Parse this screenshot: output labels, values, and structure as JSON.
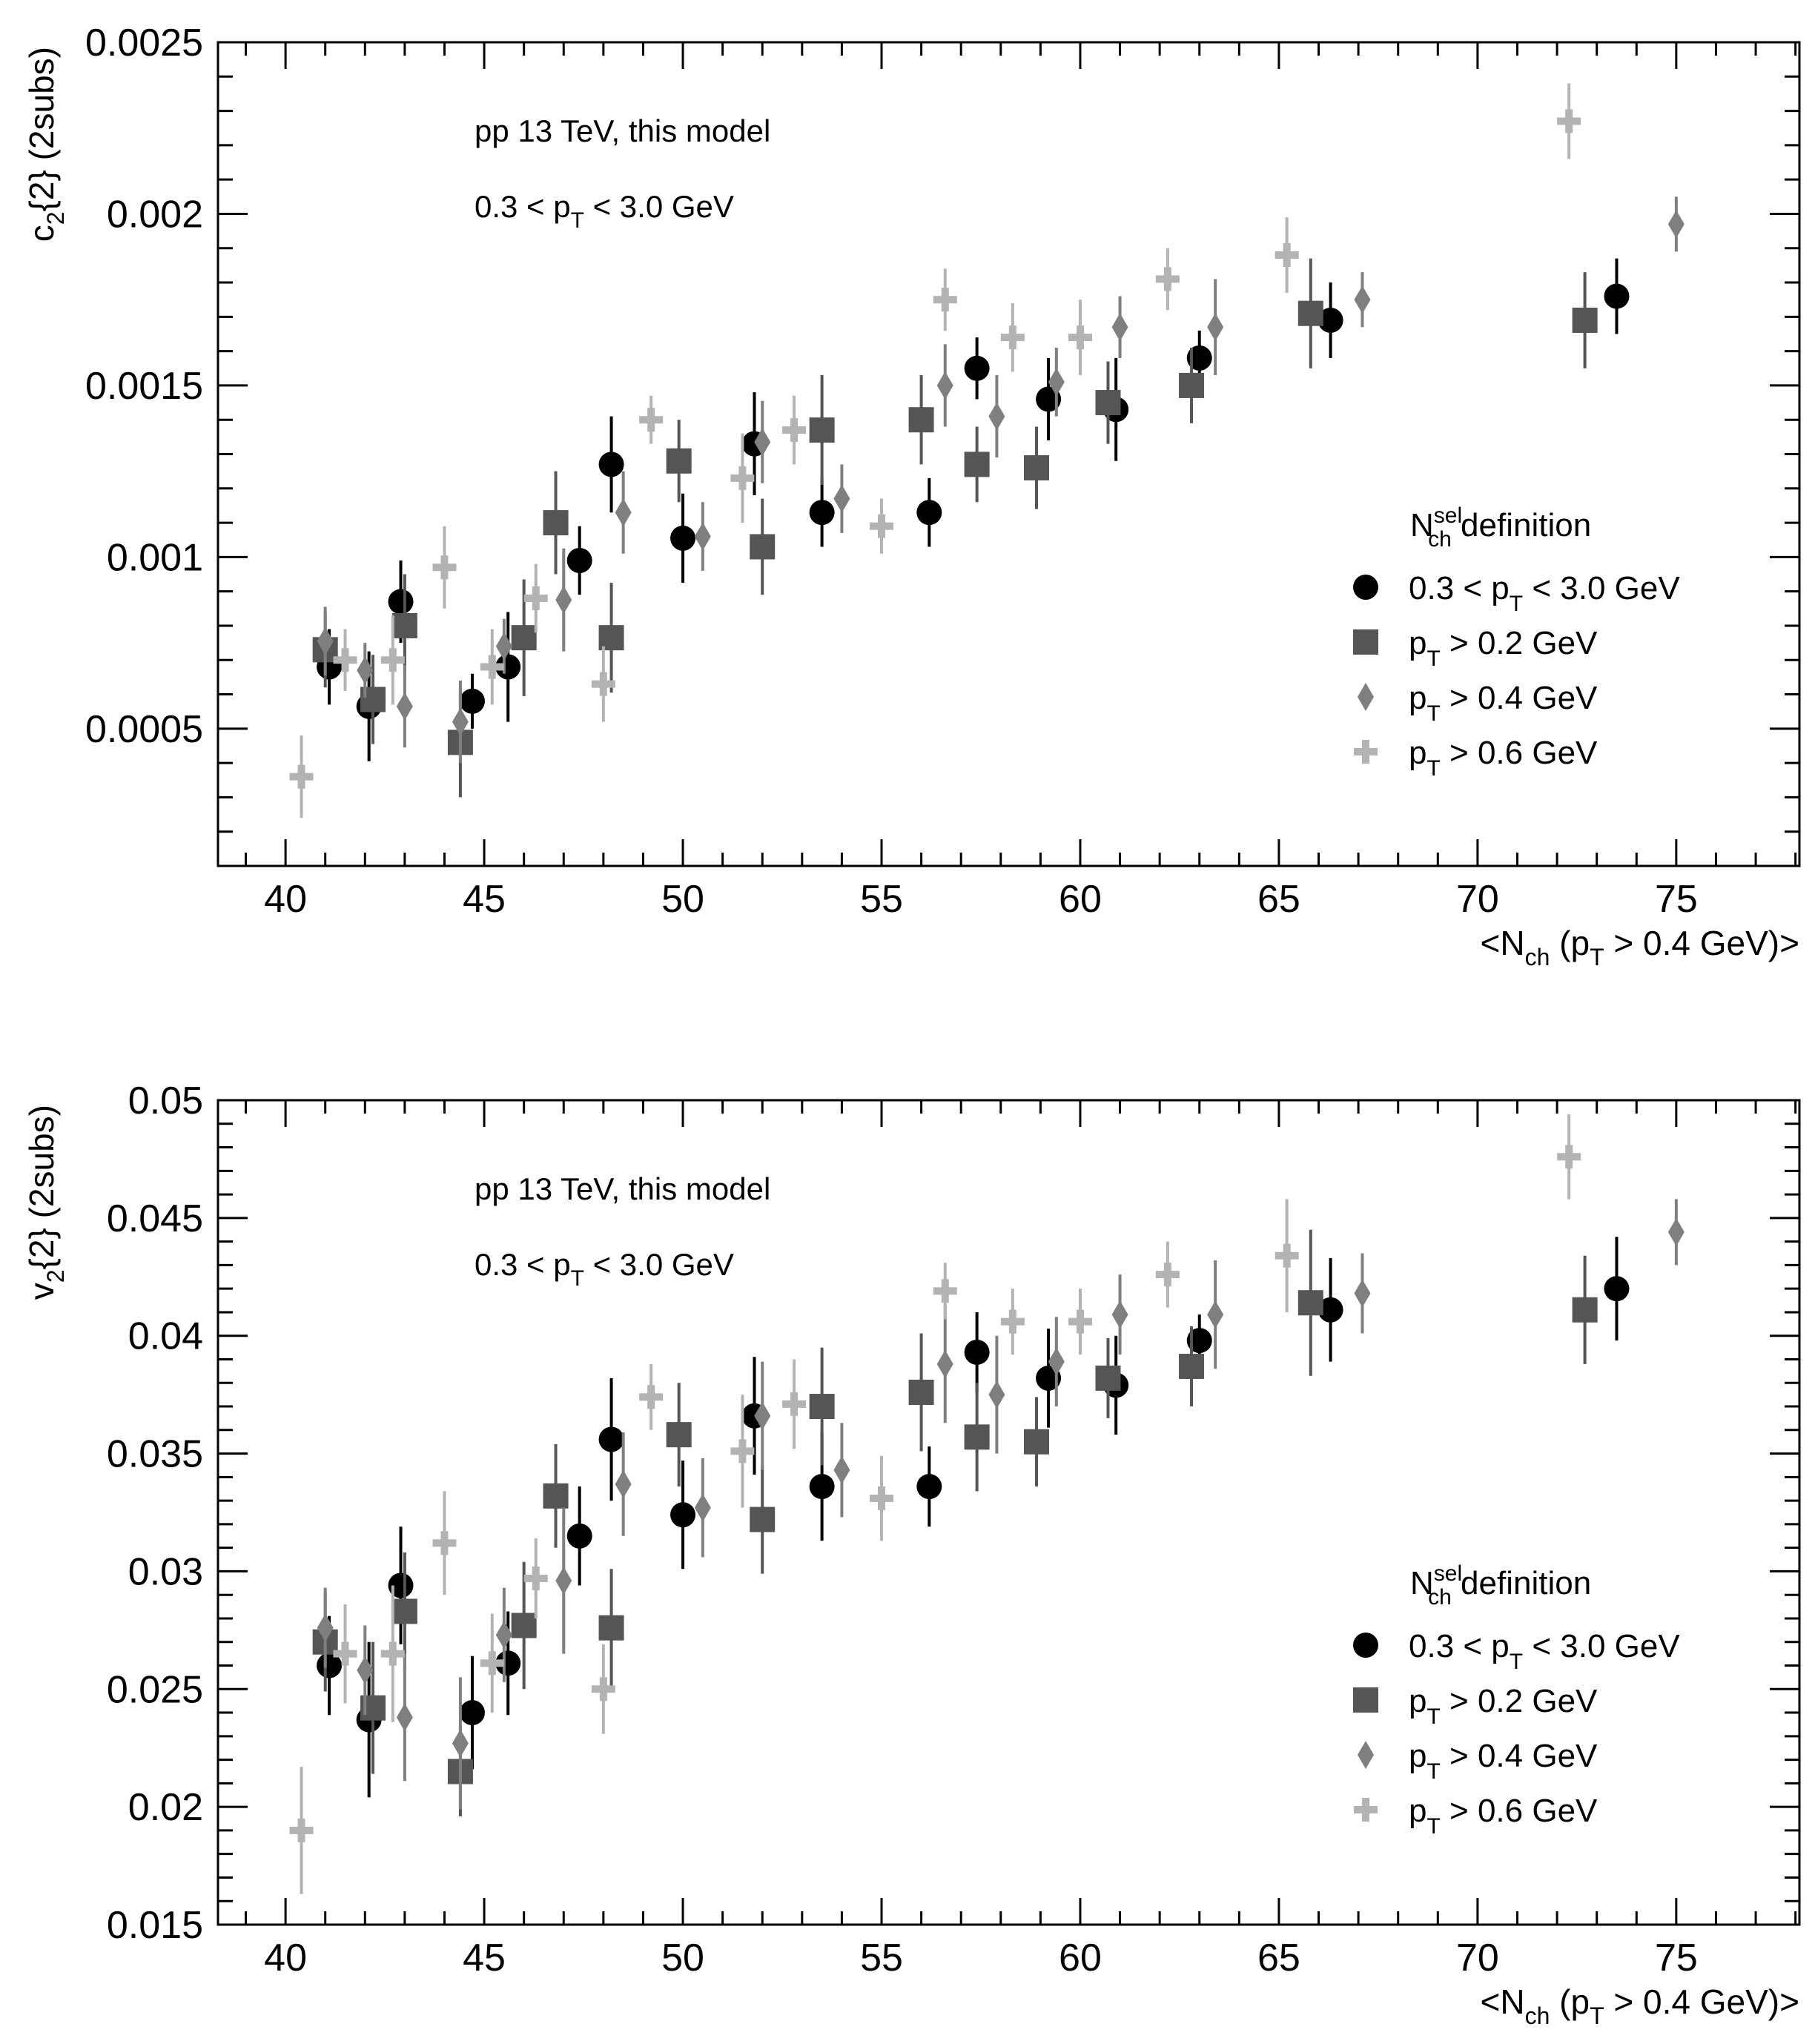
{
  "chart_data": [
    {
      "type": "scatter",
      "panel": "top",
      "ylabel": {
        "main": "c",
        "sub": "2",
        "rest": "{2} (2subs)"
      },
      "xlabel": {
        "pre": "<N",
        "sub1": "ch",
        "mid": " (p",
        "sub2": "T",
        "post": " > 0.4 GeV)>"
      },
      "xlim": [
        38.3,
        78.1
      ],
      "ylim": [
        0.0001,
        0.0025
      ],
      "xticks": [
        "40",
        "45",
        "50",
        "55",
        "60",
        "65",
        "70",
        "75"
      ],
      "xtick_values": [
        40,
        45,
        50,
        55,
        60,
        65,
        70,
        75
      ],
      "yticks": [
        "0.0005",
        "0.001",
        "0.0015",
        "0.002",
        "0.0025"
      ],
      "ytick_values": [
        0.0005,
        0.001,
        0.0015,
        0.002,
        0.0025
      ],
      "annotations": {
        "line1": "pp 13 TeV, this model",
        "line2": {
          "pre": "0.3 < p",
          "sub": "T",
          "post": " < 3.0 GeV"
        }
      },
      "legend": {
        "title": {
          "main": "N",
          "sup": "sel",
          "sub": "ch",
          "post": " definition"
        },
        "placement": "right",
        "entries": [
          {
            "pre": "0.3 < p",
            "sub": "T",
            "post": " < 3.0 GeV"
          },
          {
            "pre": "p",
            "sub": "T",
            "post": " > 0.2 GeV"
          },
          {
            "pre": "p",
            "sub": "T",
            "post": " > 0.4 GeV"
          },
          {
            "pre": "p",
            "sub": "T",
            "post": " > 0.6 GeV"
          }
        ]
      },
      "series": [
        {
          "name": "0.3 < pT < 3.0 GeV",
          "marker": "circle",
          "color": "#000000",
          "x": [
            41.1,
            42.1,
            42.9,
            44.7,
            45.6,
            47.4,
            48.2,
            50.0,
            51.8,
            53.5,
            56.2,
            57.4,
            59.2,
            60.9,
            63.0,
            66.3,
            73.5
          ],
          "y": [
            0.00068,
            0.000565,
            0.00087,
            0.00058,
            0.00068,
            0.00099,
            0.00127,
            0.001055,
            0.00133,
            0.00113,
            0.00113,
            0.00155,
            0.00146,
            0.00143,
            0.00158,
            0.00169,
            0.00176
          ],
          "err": [
            0.00011,
            0.00016,
            0.00012,
            8e-05,
            0.00016,
            0.0001,
            0.00014,
            0.00013,
            0.00015,
            0.0001,
            0.0001,
            9e-05,
            0.00012,
            0.00015,
            8e-05,
            0.00011,
            0.00011
          ]
        },
        {
          "name": "pT > 0.2 GeV",
          "marker": "square",
          "color": "#555555",
          "x": [
            41.0,
            42.2,
            43.0,
            44.4,
            46.0,
            46.8,
            48.2,
            49.9,
            52.0,
            53.5,
            56.0,
            57.4,
            58.9,
            60.7,
            62.8,
            65.8,
            72.7
          ],
          "y": [
            0.00073,
            0.000585,
            0.0008,
            0.00046,
            0.000765,
            0.0011,
            0.000765,
            0.00128,
            0.00103,
            0.00137,
            0.0014,
            0.00127,
            0.00126,
            0.00145,
            0.0015,
            0.00171,
            0.00169
          ],
          "err": [
            0.00011,
            0.00013,
            0.00015,
            0.00016,
            0.00017,
            0.00015,
            0.00016,
            0.00012,
            0.00014,
            0.00016,
            0.00013,
            0.00011,
            0.00012,
            0.00012,
            0.00011,
            0.00016,
            0.00014
          ]
        },
        {
          "name": "pT > 0.4 GeV",
          "marker": "diamond",
          "color": "#7f7f7f",
          "x": [
            41.0,
            42.0,
            43.0,
            44.4,
            45.5,
            47.0,
            48.5,
            50.5,
            52.0,
            54.0,
            56.6,
            57.9,
            59.4,
            61.0,
            63.4,
            67.1,
            75.0
          ],
          "y": [
            0.000755,
            0.00067,
            0.000565,
            0.00052,
            0.00074,
            0.000875,
            0.00113,
            0.00106,
            0.001335,
            0.00117,
            0.0015,
            0.00141,
            0.00151,
            0.00167,
            0.00167,
            0.00175,
            0.00197
          ],
          "err": [
            0.0001,
            8e-05,
            0.00012,
            0.00012,
            8e-05,
            0.00015,
            0.00012,
            0.0001,
            0.00012,
            0.0001,
            0.00012,
            0.00012,
            0.0001,
            9e-05,
            0.00014,
            8e-05,
            8e-05
          ]
        },
        {
          "name": "pT > 0.6 GeV",
          "marker": "cross",
          "color": "#b3b3b3",
          "x": [
            40.4,
            41.5,
            42.7,
            44.0,
            45.2,
            46.3,
            48.0,
            49.2,
            51.5,
            52.8,
            55.0,
            56.6,
            58.3,
            60.0,
            62.2,
            65.2,
            72.3
          ],
          "y": [
            0.00036,
            0.0007,
            0.0007,
            0.00097,
            0.00068,
            0.00088,
            0.00063,
            0.0014,
            0.00123,
            0.00137,
            0.00109,
            0.00175,
            0.00164,
            0.00164,
            0.00181,
            0.00188,
            0.00227
          ],
          "err": [
            0.00012,
            9e-05,
            0.00013,
            0.00012,
            0.00011,
            0.0001,
            0.00011,
            7e-05,
            0.00013,
            0.0001,
            8e-05,
            9e-05,
            0.0001,
            0.00011,
            9e-05,
            0.00011,
            0.00011
          ]
        }
      ]
    },
    {
      "type": "scatter",
      "panel": "bottom",
      "ylabel": {
        "main": "v",
        "sub": "2",
        "rest": "{2} (2subs)"
      },
      "xlabel": {
        "pre": "<N",
        "sub1": "ch",
        "mid": " (p",
        "sub2": "T",
        "post": " > 0.4 GeV)>"
      },
      "xlim": [
        38.3,
        78.1
      ],
      "ylim": [
        0.015,
        0.05
      ],
      "xticks": [
        "40",
        "45",
        "50",
        "55",
        "60",
        "65",
        "70",
        "75"
      ],
      "xtick_values": [
        40,
        45,
        50,
        55,
        60,
        65,
        70,
        75
      ],
      "yticks": [
        "0.015",
        "0.02",
        "0.025",
        "0.03",
        "0.035",
        "0.04",
        "0.045",
        "0.05"
      ],
      "ytick_values": [
        0.015,
        0.02,
        0.025,
        0.03,
        0.035,
        0.04,
        0.045,
        0.05
      ],
      "annotations": {
        "line1": "pp 13 TeV, this model",
        "line2": {
          "pre": "0.3 < p",
          "sub": "T",
          "post": " < 3.0 GeV"
        }
      },
      "legend": {
        "title": {
          "main": "N",
          "sup": "sel",
          "sub": "ch",
          "post": " definition"
        },
        "placement": "right",
        "entries": [
          {
            "pre": "0.3 < p",
            "sub": "T",
            "post": " < 3.0 GeV"
          },
          {
            "pre": "p",
            "sub": "T",
            "post": " > 0.2 GeV"
          },
          {
            "pre": "p",
            "sub": "T",
            "post": " > 0.4 GeV"
          },
          {
            "pre": "p",
            "sub": "T",
            "post": " > 0.6 GeV"
          }
        ]
      },
      "series": [
        {
          "name": "0.3 < pT < 3.0 GeV",
          "marker": "circle",
          "color": "#000000",
          "x": [
            41.1,
            42.1,
            42.9,
            44.7,
            45.6,
            47.4,
            48.2,
            50.0,
            51.8,
            53.5,
            56.2,
            57.4,
            59.2,
            60.9,
            63.0,
            66.3,
            73.5
          ],
          "y": [
            0.026,
            0.0237,
            0.0294,
            0.024,
            0.0261,
            0.0315,
            0.0356,
            0.0324,
            0.0366,
            0.0336,
            0.0336,
            0.0393,
            0.0382,
            0.0379,
            0.0398,
            0.0411,
            0.042
          ],
          "err": [
            0.0021,
            0.0033,
            0.0025,
            0.0024,
            0.0022,
            0.0021,
            0.0026,
            0.0023,
            0.0025,
            0.0023,
            0.0017,
            0.0017,
            0.0021,
            0.0021,
            0.0011,
            0.0022,
            0.0022
          ]
        },
        {
          "name": "pT > 0.2 GeV",
          "marker": "square",
          "color": "#555555",
          "x": [
            41.0,
            42.2,
            43.0,
            44.4,
            46.0,
            46.8,
            48.2,
            49.9,
            52.0,
            53.5,
            56.0,
            57.4,
            58.9,
            60.7,
            62.8,
            65.8,
            72.7
          ],
          "y": [
            0.027,
            0.0242,
            0.0283,
            0.0215,
            0.0277,
            0.0332,
            0.0276,
            0.0358,
            0.0322,
            0.037,
            0.0376,
            0.0357,
            0.0355,
            0.0382,
            0.0387,
            0.0414,
            0.0411
          ],
          "err": [
            0.0021,
            0.0028,
            0.0025,
            0.0019,
            0.0027,
            0.0022,
            0.0025,
            0.0022,
            0.0023,
            0.0025,
            0.0025,
            0.0023,
            0.0019,
            0.0017,
            0.0017,
            0.0031,
            0.0023
          ]
        },
        {
          "name": "pT > 0.4 GeV",
          "marker": "diamond",
          "color": "#7f7f7f",
          "x": [
            41.0,
            42.0,
            43.0,
            44.4,
            45.5,
            47.0,
            48.5,
            50.5,
            52.0,
            54.0,
            56.6,
            57.9,
            59.4,
            61.0,
            63.4,
            67.1,
            75.0
          ],
          "y": [
            0.0276,
            0.0258,
            0.0238,
            0.0227,
            0.0273,
            0.0296,
            0.0337,
            0.0327,
            0.0366,
            0.0343,
            0.0388,
            0.0375,
            0.0389,
            0.0409,
            0.0409,
            0.0418,
            0.0444
          ],
          "err": [
            0.0017,
            0.0019,
            0.0027,
            0.0028,
            0.002,
            0.0031,
            0.0022,
            0.0021,
            0.0023,
            0.002,
            0.0025,
            0.0025,
            0.0019,
            0.0017,
            0.0023,
            0.0017,
            0.0014
          ]
        },
        {
          "name": "pT > 0.6 GeV",
          "marker": "cross",
          "color": "#b3b3b3",
          "x": [
            40.4,
            41.5,
            42.7,
            44.0,
            45.2,
            46.3,
            48.0,
            49.2,
            51.5,
            52.8,
            55.0,
            56.6,
            58.3,
            60.0,
            62.2,
            65.2,
            72.3
          ],
          "y": [
            0.019,
            0.0265,
            0.0265,
            0.0312,
            0.0261,
            0.0297,
            0.025,
            0.0374,
            0.0351,
            0.0371,
            0.0331,
            0.0419,
            0.0406,
            0.0406,
            0.0426,
            0.0434,
            0.0476
          ],
          "err": [
            0.0027,
            0.0021,
            0.0029,
            0.0022,
            0.0021,
            0.0017,
            0.0019,
            0.0014,
            0.0024,
            0.0019,
            0.0018,
            0.0012,
            0.0014,
            0.0014,
            0.0014,
            0.0024,
            0.0018
          ]
        }
      ]
    }
  ]
}
